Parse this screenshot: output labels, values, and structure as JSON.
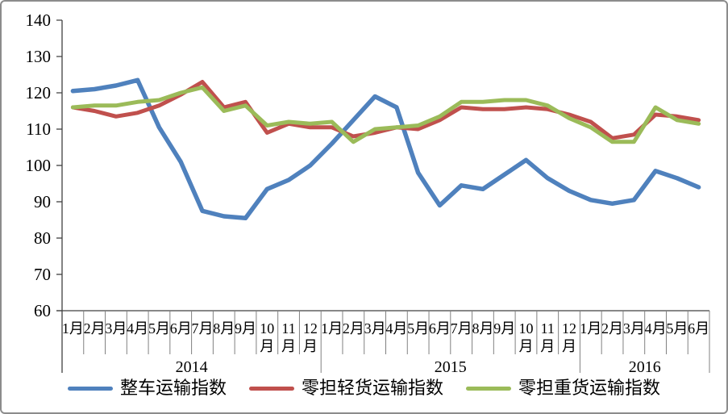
{
  "chart_data": {
    "type": "line",
    "title": "",
    "xlabel": "",
    "ylabel": "",
    "grid": false,
    "legend_position": "bottom",
    "y_axis": {
      "min": 60,
      "max": 140,
      "step": 10,
      "ticks": [
        "140",
        "130",
        "120",
        "110",
        "100",
        "90",
        "80",
        "70",
        "60"
      ]
    },
    "x_axis": {
      "years": [
        {
          "label": "2014",
          "months": [
            "1月",
            "2月",
            "3月",
            "4月",
            "5月",
            "6月",
            "7月",
            "8月",
            "9月",
            "10月",
            "11月",
            "12月"
          ]
        },
        {
          "label": "2015",
          "months": [
            "1月",
            "2月",
            "3月",
            "4月",
            "5月",
            "6月",
            "7月",
            "8月",
            "9月",
            "10月",
            "11月",
            "12月"
          ]
        },
        {
          "label": "2016",
          "months": [
            "1月",
            "2月",
            "3月",
            "4月",
            "5月",
            "6月"
          ]
        }
      ]
    },
    "series": [
      {
        "name": "整车运输指数",
        "color": "#4F81BD",
        "values": [
          120.5,
          121,
          122,
          123.5,
          110.5,
          101,
          87.5,
          86,
          85.5,
          93.5,
          96,
          100,
          106,
          112.5,
          119,
          116,
          98,
          89,
          94.5,
          93.5,
          97.5,
          101.5,
          96.5,
          93,
          90.5,
          89.5,
          90.5,
          98.5,
          96.5,
          94
        ]
      },
      {
        "name": "零担轻货运输指数",
        "color": "#C0504D",
        "values": [
          116,
          115,
          113.5,
          114.5,
          116.5,
          119.5,
          123,
          116,
          117.5,
          109,
          111.5,
          110.5,
          110.5,
          108,
          109,
          110.5,
          110,
          112.5,
          116,
          115.5,
          115.5,
          116,
          115.5,
          114,
          112,
          107.5,
          108.5,
          114,
          113.5,
          112.5
        ]
      },
      {
        "name": "零担重货运输指数",
        "color": "#9BBB59",
        "values": [
          116,
          116.5,
          116.5,
          117.5,
          118,
          120,
          121.5,
          115,
          116.5,
          111,
          112,
          111.5,
          112,
          106.5,
          110,
          110.5,
          111,
          113.5,
          117.5,
          117.5,
          118,
          118,
          116.5,
          113,
          110.5,
          106.5,
          106.5,
          116,
          112.5,
          111.5
        ]
      }
    ]
  },
  "colors": {
    "axis": "#404040",
    "separator": "#808080",
    "text": "#000000",
    "border": "#8C8C8C",
    "background": "#FFFFFF"
  }
}
